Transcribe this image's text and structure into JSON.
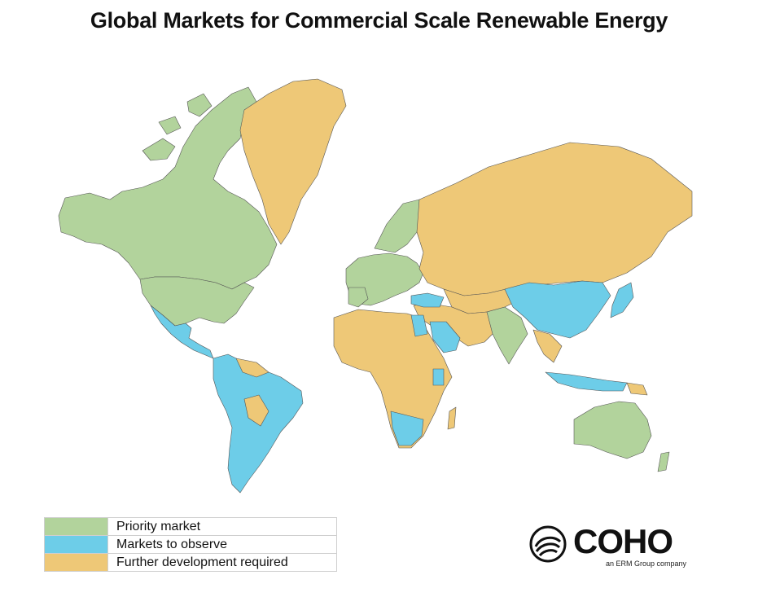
{
  "title": "Global Markets for Commercial Scale Renewable Energy",
  "legend": [
    {
      "label": "Priority market",
      "color": "#b2d39c"
    },
    {
      "label": "Markets to observe",
      "color": "#6dcde8"
    },
    {
      "label": "Further development required",
      "color": "#eec877"
    }
  ],
  "regions": {
    "priority": [
      "Canada",
      "United States",
      "Western Europe",
      "Scandinavia",
      "India",
      "Australia"
    ],
    "observe": [
      "Mexico",
      "Central America",
      "Brazil",
      "Colombia",
      "Peru",
      "Argentina",
      "Chile",
      "China",
      "Japan",
      "Saudi Arabia",
      "Egypt",
      "Turkey",
      "South Africa",
      "Namibia",
      "Kenya",
      "Indonesia",
      "Vietnam",
      "Thailand"
    ],
    "further": [
      "Greenland",
      "Russia",
      "Central Asia",
      "Africa",
      "Middle East",
      "Southeast Asia",
      "Venezuela",
      "Bolivia",
      "Paraguay",
      "Papua New Guinea"
    ]
  },
  "logo": {
    "name": "COHO",
    "tagline": "an ERM Group company"
  }
}
